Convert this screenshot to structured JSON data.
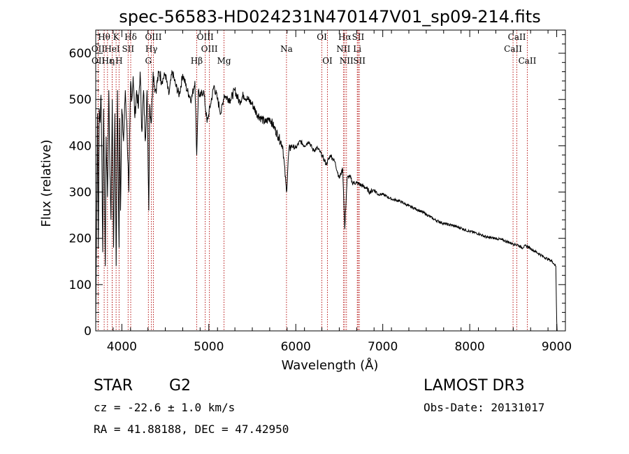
{
  "chart_data": {
    "type": "line",
    "title": "spec-56583-HD024231N470147V01_sp09-214.fits",
    "xlabel": "Wavelength (Å)",
    "ylabel": "Flux (relative)",
    "xlim": [
      3700,
      9100
    ],
    "ylim": [
      0,
      650
    ],
    "x_ticks": [
      4000,
      5000,
      6000,
      7000,
      8000,
      9000
    ],
    "y_ticks": [
      0,
      100,
      200,
      300,
      400,
      500,
      600
    ],
    "series": [
      {
        "name": "flux",
        "x": [
          3700,
          3710,
          3720,
          3730,
          3740,
          3750,
          3760,
          3770,
          3780,
          3790,
          3800,
          3810,
          3820,
          3835,
          3850,
          3860,
          3875,
          3890,
          3905,
          3920,
          3935,
          3950,
          3960,
          3968,
          3975,
          3985,
          4000,
          4020,
          4040,
          4060,
          4080,
          4101,
          4115,
          4130,
          4150,
          4170,
          4190,
          4210,
          4230,
          4250,
          4270,
          4290,
          4310,
          4320,
          4340,
          4360,
          4383,
          4400,
          4430,
          4460,
          4500,
          4540,
          4580,
          4620,
          4660,
          4700,
          4750,
          4800,
          4840,
          4861,
          4880,
          4900,
          4940,
          4980,
          5020,
          5060,
          5100,
          5140,
          5175,
          5200,
          5250,
          5300,
          5350,
          5400,
          5450,
          5500,
          5550,
          5600,
          5650,
          5700,
          5750,
          5800,
          5850,
          5893,
          5920,
          5950,
          6000,
          6050,
          6100,
          6150,
          6200,
          6250,
          6300,
          6350,
          6400,
          6450,
          6500,
          6540,
          6563,
          6590,
          6620,
          6650,
          6700,
          6750,
          6800,
          6850,
          6900,
          6950,
          7000,
          7100,
          7200,
          7300,
          7400,
          7500,
          7600,
          7700,
          7800,
          7900,
          8000,
          8100,
          8200,
          8300,
          8400,
          8500,
          8550,
          8600,
          8650,
          8700,
          8750,
          8800,
          8850,
          8900,
          8950,
          8990,
          9000,
          9005
        ],
        "y": [
          20,
          240,
          470,
          180,
          480,
          450,
          510,
          390,
          170,
          480,
          330,
          140,
          420,
          290,
          520,
          380,
          240,
          500,
          180,
          470,
          140,
          520,
          300,
          180,
          460,
          260,
          480,
          410,
          520,
          430,
          300,
          540,
          500,
          550,
          460,
          520,
          480,
          560,
          430,
          520,
          410,
          520,
          260,
          490,
          450,
          560,
          520,
          530,
          560,
          540,
          555,
          510,
          560,
          530,
          510,
          555,
          520,
          500,
          540,
          380,
          520,
          505,
          520,
          450,
          490,
          530,
          500,
          470,
          510,
          505,
          500,
          520,
          495,
          510,
          500,
          490,
          470,
          460,
          450,
          460,
          440,
          420,
          400,
          300,
          390,
          400,
          395,
          410,
          400,
          410,
          390,
          395,
          380,
          360,
          380,
          365,
          330,
          350,
          220,
          330,
          335,
          320,
          320,
          315,
          310,
          300,
          305,
          295,
          295,
          285,
          280,
          270,
          262,
          252,
          240,
          232,
          228,
          222,
          215,
          210,
          202,
          200,
          195,
          188,
          186,
          180,
          184,
          178,
          172,
          166,
          160,
          155,
          150,
          140,
          20,
          0
        ]
      }
    ],
    "line_markers": [
      {
        "label": "Hθ",
        "wavelength": 3797,
        "row": 1
      },
      {
        "label": "OII",
        "wavelength": 3727,
        "row": 2
      },
      {
        "label": "OII",
        "wavelength": 3729,
        "row": 3
      },
      {
        "label": "Hε",
        "wavelength": 3835,
        "row": 3
      },
      {
        "label": "HeI",
        "wavelength": 3889,
        "row": 2
      },
      {
        "label": "K",
        "wavelength": 3934,
        "row": 1
      },
      {
        "label": "η",
        "wavelength": 3889,
        "row": 3
      },
      {
        "label": "H",
        "wavelength": 3968,
        "row": 3
      },
      {
        "label": "SII",
        "wavelength": 4072,
        "row": 2
      },
      {
        "label": "Hδ",
        "wavelength": 4102,
        "row": 1
      },
      {
        "label": "OIII",
        "wavelength": 4363,
        "row": 1
      },
      {
        "label": "Hγ",
        "wavelength": 4340,
        "row": 2
      },
      {
        "label": "G",
        "wavelength": 4305,
        "row": 3
      },
      {
        "label": "Hβ",
        "wavelength": 4861,
        "row": 3
      },
      {
        "label": "OIII",
        "wavelength": 4959,
        "row": 1
      },
      {
        "label": "OIII",
        "wavelength": 5007,
        "row": 2
      },
      {
        "label": "Mg",
        "wavelength": 5175,
        "row": 3
      },
      {
        "label": "Na",
        "wavelength": 5893,
        "row": 2
      },
      {
        "label": "OI",
        "wavelength": 6300,
        "row": 1
      },
      {
        "label": "OI",
        "wavelength": 6364,
        "row": 3
      },
      {
        "label": "Hα",
        "wavelength": 6563,
        "row": 1
      },
      {
        "label": "NII",
        "wavelength": 6548,
        "row": 2
      },
      {
        "label": "NII",
        "wavelength": 6583,
        "row": 3
      },
      {
        "label": "SII",
        "wavelength": 6717,
        "row": 1
      },
      {
        "label": "Li",
        "wavelength": 6707,
        "row": 2
      },
      {
        "label": "SII",
        "wavelength": 6731,
        "row": 3
      },
      {
        "label": "CaII",
        "wavelength": 8542,
        "row": 1
      },
      {
        "label": "CaII",
        "wavelength": 8498,
        "row": 2
      },
      {
        "label": "CaII",
        "wavelength": 8662,
        "row": 3
      }
    ]
  },
  "info": {
    "object_class": "STAR",
    "subclass": "G2",
    "survey": "LAMOST DR3",
    "redshift": "cz = -22.6 ± 1.0 km/s",
    "obs_date": "Obs-Date: 20131017",
    "coords": "RA =  41.88188, DEC =  47.42950"
  }
}
